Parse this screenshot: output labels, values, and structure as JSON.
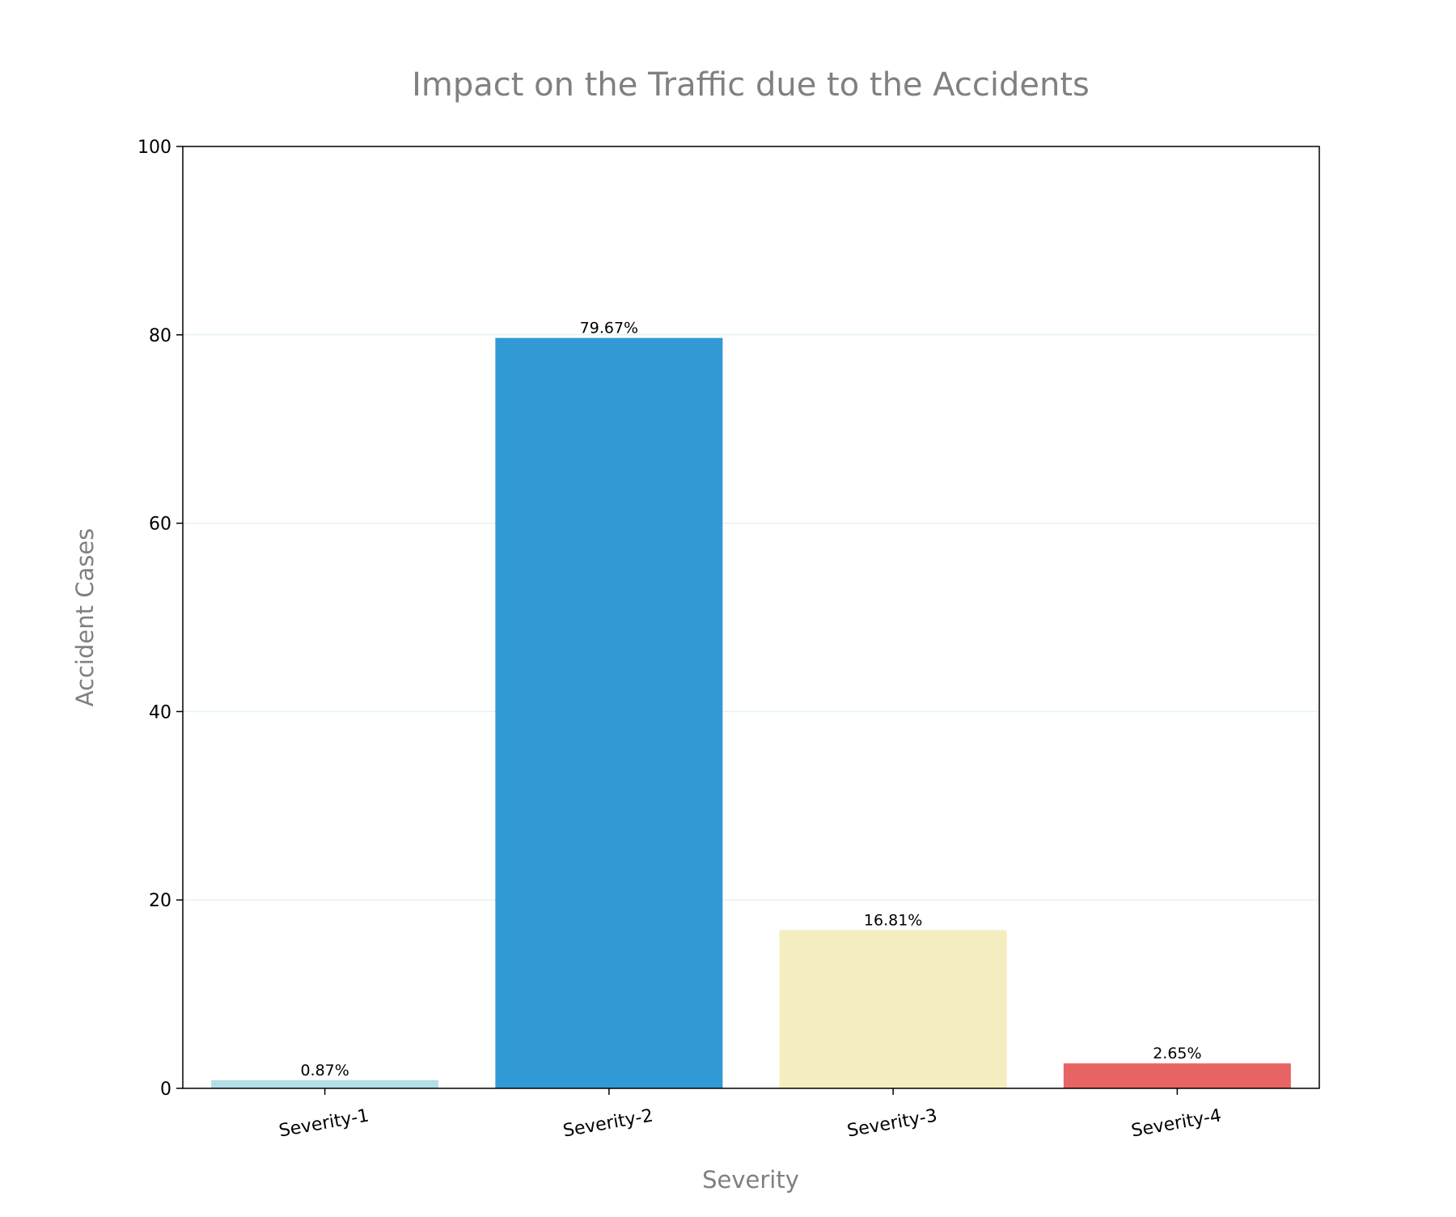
{
  "chart_data": {
    "type": "bar",
    "title": "Impact on the Traffic due to the Accidents",
    "xlabel": "Severity",
    "ylabel": "Accident Cases",
    "categories": [
      "Severity-1",
      "Severity-2",
      "Severity-3",
      "Severity-4"
    ],
    "values": [
      0.87,
      79.67,
      16.81,
      2.65
    ],
    "data_labels": [
      "0.87%",
      "79.67%",
      "16.81%",
      "2.65%"
    ],
    "colors": [
      "#b2dfe6",
      "#3199d3",
      "#f4edc0",
      "#e86464"
    ],
    "ylim": [
      0,
      100
    ],
    "yticks": [
      0,
      20,
      40,
      60,
      80,
      100
    ],
    "grid": "y-axis, light",
    "legend": "none"
  },
  "colors": {
    "title_text": "#808080",
    "axis_label_text": "#808080",
    "tick_text": "#000000",
    "grid": "#e4f3f3",
    "frame": "#000000"
  }
}
